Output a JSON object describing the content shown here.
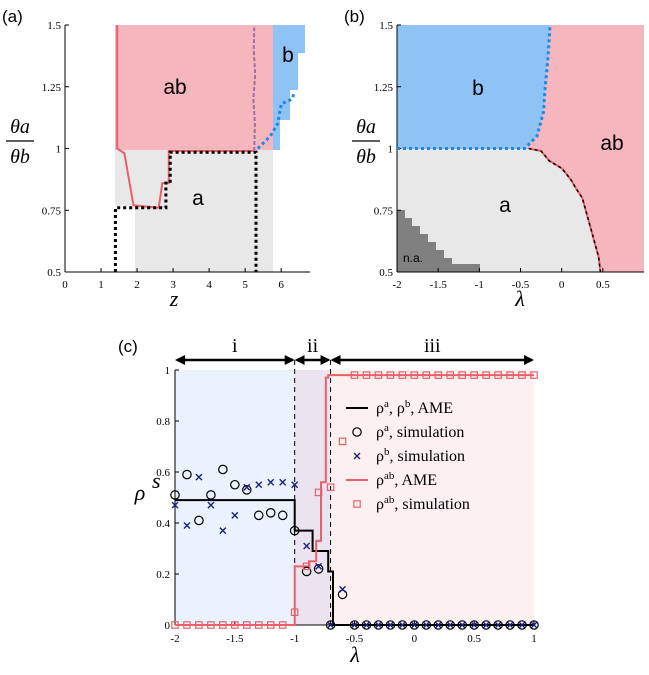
{
  "chart_data": [
    {
      "id": "a",
      "type": "phase-diagram",
      "panel_label": "(a)",
      "xlabel": "z",
      "ylabel": {
        "num": "θa",
        "den": "θb"
      },
      "xlim": [
        0,
        6.8
      ],
      "ylim": [
        0.5,
        1.5
      ],
      "xticks": [
        "0",
        "1",
        "2",
        "3",
        "4",
        "5",
        "6"
      ],
      "yticks": [
        "0.5",
        "0.75",
        "1",
        "1.25",
        "1.5"
      ],
      "regions": [
        {
          "name": "a",
          "label": "a",
          "color": "#e8e8e8"
        },
        {
          "name": "ab",
          "label": "ab",
          "color": "#f6b6bd"
        },
        {
          "name": "b",
          "label": "b",
          "color": "#8fc2f5"
        }
      ],
      "ab_boundary": [
        [
          1.45,
          1.5
        ],
        [
          1.45,
          1.0
        ],
        [
          1.65,
          0.98
        ],
        [
          1.9,
          0.77
        ],
        [
          2.6,
          0.76
        ],
        [
          2.7,
          0.86
        ],
        [
          2.88,
          0.86
        ],
        [
          2.88,
          0.99
        ],
        [
          5.25,
          0.99
        ],
        [
          5.25,
          1.49
        ]
      ],
      "a_boundary": [
        [
          1.4,
          0.5
        ],
        [
          1.4,
          0.76
        ],
        [
          2.8,
          0.76
        ],
        [
          2.8,
          0.86
        ],
        [
          2.92,
          0.86
        ],
        [
          2.92,
          0.985
        ],
        [
          5.3,
          0.985
        ],
        [
          5.3,
          0.5
        ]
      ],
      "b_boundary": [
        [
          5.35,
          1.0
        ],
        [
          5.7,
          1.05
        ],
        [
          5.9,
          1.1
        ],
        [
          6.0,
          1.18
        ],
        [
          6.3,
          1.2
        ],
        [
          6.35,
          1.22
        ]
      ]
    },
    {
      "id": "b",
      "type": "phase-diagram",
      "panel_label": "(b)",
      "xlabel": "λ",
      "ylabel": {
        "num": "θa",
        "den": "θb"
      },
      "xlim": [
        -2,
        1
      ],
      "ylim": [
        0.5,
        1.5
      ],
      "xticks": [
        "-2",
        "-1.5",
        "-1",
        "-0.5",
        "0",
        "0.5"
      ],
      "yticks": [
        "0.5",
        "0.75",
        "1",
        "1.25",
        "1.5"
      ],
      "regions": [
        {
          "name": "a",
          "label": "a",
          "color": "#e8e8e8"
        },
        {
          "name": "b",
          "label": "b",
          "color": "#8fc2f5"
        },
        {
          "name": "ab",
          "label": "ab",
          "color": "#f6b6bd"
        },
        {
          "name": "na",
          "label": "n.a.",
          "color": "#808080"
        }
      ],
      "ab_boundary": [
        [
          -0.4,
          1.0
        ],
        [
          -0.25,
          0.99
        ],
        [
          -0.15,
          0.95
        ],
        [
          0.0,
          0.92
        ],
        [
          0.05,
          0.9
        ],
        [
          0.12,
          0.87
        ],
        [
          0.17,
          0.84
        ],
        [
          0.25,
          0.8
        ],
        [
          0.3,
          0.74
        ],
        [
          0.35,
          0.68
        ],
        [
          0.4,
          0.62
        ],
        [
          0.45,
          0.56
        ],
        [
          0.47,
          0.5
        ]
      ],
      "b_boundary": [
        [
          -2,
          1.0
        ],
        [
          -0.45,
          1.0
        ],
        [
          -0.3,
          1.05
        ],
        [
          -0.22,
          1.15
        ],
        [
          -0.2,
          1.25
        ],
        [
          -0.17,
          1.35
        ],
        [
          -0.15,
          1.45
        ],
        [
          -0.14,
          1.5
        ]
      ]
    },
    {
      "id": "c",
      "type": "line",
      "panel_label": "(c)",
      "xlabel": "λ",
      "ylabel": "ρ^s",
      "xlim": [
        -2,
        1
      ],
      "ylim": [
        0,
        1
      ],
      "xticks": [
        "-2",
        "-1.5",
        "-1",
        "-0.5",
        "0",
        "0.5",
        "1"
      ],
      "yticks": [
        "0",
        "0.2",
        "0.4",
        "0.6",
        "0.8",
        "1"
      ],
      "phases": [
        {
          "label": "i",
          "from": -2,
          "to": -1,
          "color": "#eaf3fd"
        },
        {
          "label": "ii",
          "from": -1,
          "to": -0.7,
          "color": "#ebe4f0"
        },
        {
          "label": "iii",
          "from": -0.7,
          "to": 1,
          "color": "#fdf0f0"
        }
      ],
      "vlines": [
        -1,
        -0.7
      ],
      "series": [
        {
          "name": "AME_a_b",
          "legend_main": "ρ",
          "legend_sup": "a",
          "legend_main2": ", ρ",
          "legend_sup2": "b",
          "legend_rest": ", AME",
          "color": "#000000",
          "kind": "line",
          "x": [
            -2,
            -1,
            -1,
            -0.85,
            -0.85,
            -0.72,
            -0.72,
            -0.68,
            -0.68,
            1
          ],
          "y": [
            0.49,
            0.49,
            0.37,
            0.37,
            0.29,
            0.29,
            0.21,
            0.21,
            0,
            0
          ]
        },
        {
          "name": "sim_a",
          "legend_main": "ρ",
          "legend_sup": "a",
          "legend_rest": ", simulation",
          "color": "#000000",
          "kind": "circle",
          "x": [
            -2,
            -1.9,
            -1.8,
            -1.7,
            -1.6,
            -1.5,
            -1.4,
            -1.3,
            -1.2,
            -1.1,
            -1.0,
            -0.9,
            -0.8,
            -0.7,
            -0.6,
            -0.5,
            -0.4,
            -0.3,
            -0.2,
            -0.1,
            0,
            0.1,
            0.2,
            0.3,
            0.4,
            0.5,
            0.6,
            0.7,
            0.8,
            0.9,
            1.0
          ],
          "y": [
            0.51,
            0.59,
            0.41,
            0.51,
            0.61,
            0.55,
            0.53,
            0.43,
            0.44,
            0.43,
            0.37,
            0.21,
            0.22,
            0.0,
            0.12,
            0,
            0,
            0,
            0,
            0,
            0,
            0,
            0,
            0,
            0,
            0,
            0,
            0,
            0,
            0,
            0
          ]
        },
        {
          "name": "sim_b",
          "legend_main": "ρ",
          "legend_sup": "b",
          "legend_rest": ", simulation",
          "color": "#1a237e",
          "kind": "cross",
          "x": [
            -2,
            -1.9,
            -1.8,
            -1.7,
            -1.6,
            -1.5,
            -1.4,
            -1.3,
            -1.2,
            -1.1,
            -1.0,
            -0.9,
            -0.8,
            -0.7,
            -0.6,
            -0.5,
            -0.4,
            -0.3,
            -0.2,
            -0.1,
            0,
            0.1,
            0.2,
            0.3,
            0.4,
            0.5,
            0.6,
            0.7,
            0.8,
            0.9,
            1.0
          ],
          "y": [
            0.47,
            0.39,
            0.58,
            0.47,
            0.37,
            0.43,
            0.54,
            0.55,
            0.56,
            0.56,
            0.55,
            0.31,
            0.23,
            0.0,
            0.14,
            0,
            0,
            0,
            0,
            0,
            0,
            0,
            0,
            0,
            0,
            0,
            0,
            0,
            0,
            0,
            0
          ]
        },
        {
          "name": "AME_ab",
          "legend_main": "ρ",
          "legend_sup": "ab",
          "legend_rest": ", AME",
          "color": "#e8606a",
          "kind": "line",
          "x": [
            -2,
            -1,
            -1,
            -0.88,
            -0.88,
            -0.82,
            -0.82,
            -0.78,
            -0.78,
            -0.74,
            -0.74,
            -0.72,
            -0.72,
            1
          ],
          "y": [
            0,
            0,
            0.23,
            0.23,
            0.25,
            0.25,
            0.33,
            0.33,
            0.56,
            0.56,
            0.97,
            0.97,
            0.98,
            0.98
          ]
        },
        {
          "name": "sim_ab",
          "legend_main": "ρ",
          "legend_sup": "ab",
          "legend_rest": ", simulation",
          "color": "#e8606a",
          "kind": "square",
          "x": [
            -2,
            -1.9,
            -1.8,
            -1.7,
            -1.6,
            -1.5,
            -1.4,
            -1.3,
            -1.2,
            -1.1,
            -1.0,
            -0.9,
            -0.8,
            -0.7,
            -0.6,
            -0.5,
            -0.4,
            -0.3,
            -0.2,
            -0.1,
            0,
            0.1,
            0.2,
            0.3,
            0.4,
            0.5,
            0.6,
            0.7,
            0.8,
            0.9,
            1.0
          ],
          "y": [
            0,
            0,
            0,
            0,
            0,
            0,
            0,
            0,
            0,
            0,
            0.05,
            0.23,
            0.52,
            0.54,
            0.72,
            0.98,
            0.98,
            0.98,
            0.98,
            0.98,
            0.98,
            0.98,
            0.98,
            0.98,
            0.98,
            0.98,
            0.98,
            0.98,
            0.98,
            0.98,
            0.98
          ]
        }
      ]
    }
  ]
}
